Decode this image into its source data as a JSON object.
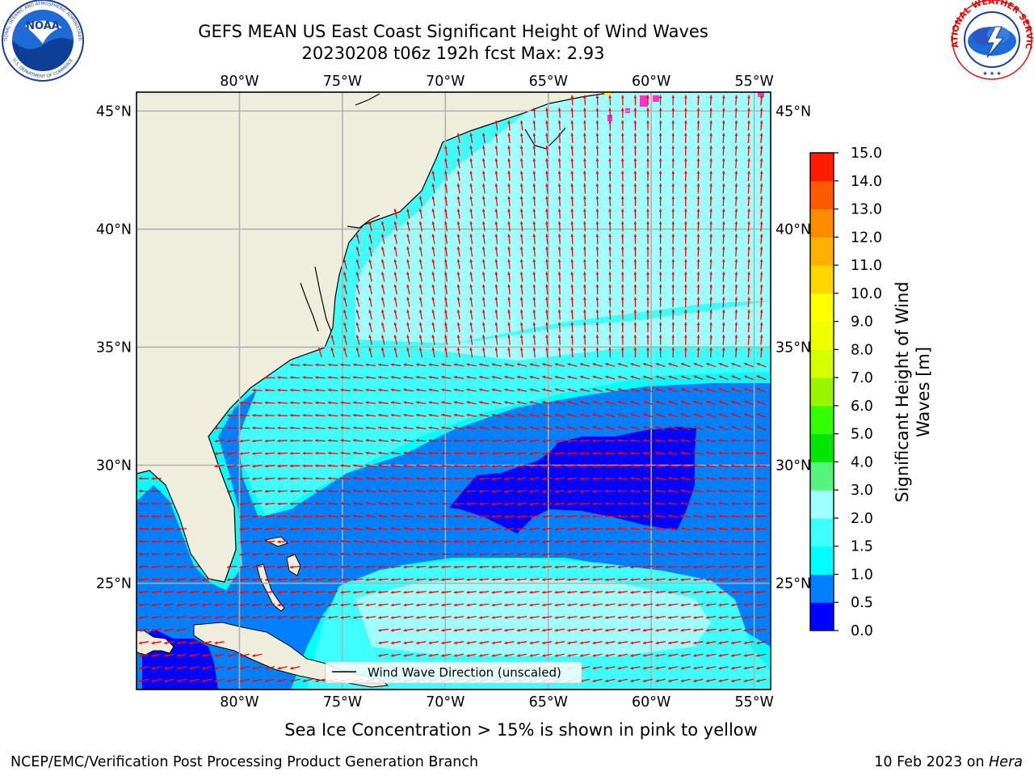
{
  "header": {
    "title_line1": "GEFS MEAN US East Coast Significant Height of Wind Waves",
    "title_line2": "20230208 t06z 192h fcst   Max: 2.93",
    "max_value": 2.93
  },
  "logos": {
    "left": {
      "name": "noaa-logo",
      "text": "NOAA",
      "ring_text": "NATIONAL OCEANIC AND ATMOSPHERIC ADMINISTRATION",
      "bottom_text": "U.S. DEPARTMENT OF COMMERCE"
    },
    "right": {
      "name": "nws-logo",
      "ring_text": "NATIONAL WEATHER SERVICE"
    }
  },
  "map": {
    "lon_range": [
      -85,
      -54.2
    ],
    "lat_range": [
      20.5,
      45.8
    ],
    "lon_ticks": [
      {
        "value": -80,
        "label": "80°W"
      },
      {
        "value": -75,
        "label": "75°W"
      },
      {
        "value": -70,
        "label": "70°W"
      },
      {
        "value": -65,
        "label": "65°W"
      },
      {
        "value": -60,
        "label": "60°W"
      },
      {
        "value": -55,
        "label": "55°W"
      }
    ],
    "lat_ticks": [
      {
        "value": 45,
        "label": "45°N"
      },
      {
        "value": 40,
        "label": "40°N"
      },
      {
        "value": 35,
        "label": "35°N"
      },
      {
        "value": 30,
        "label": "30°N"
      },
      {
        "value": 25,
        "label": "25°N"
      }
    ],
    "gridlines": true,
    "legend": {
      "label": "Wind Wave Direction (unscaled)",
      "placement": "bottom-center"
    },
    "colors": {
      "land": "#efeedc",
      "grid": "#b0b0b0",
      "arrows": "#ff0000",
      "coast": "#000000",
      "sea_ice": "#ff33cc"
    }
  },
  "colorbar": {
    "label": "Significant Height of Wind Waves [m]",
    "label_line1": "Significant Height of Wind",
    "label_line2": "Waves [m]",
    "ticks": [
      "0.0",
      "0.5",
      "1.0",
      "1.5",
      "2.0",
      "3.0",
      "4.0",
      "5.0",
      "6.0",
      "7.0",
      "8.0",
      "9.0",
      "10.0",
      "11.0",
      "12.0",
      "13.0",
      "14.0",
      "15.0"
    ],
    "colors": [
      "#0000ff",
      "#0080ff",
      "#00ffff",
      "#40ffff",
      "#a0ffff",
      "#55f57d",
      "#00e600",
      "#33ff00",
      "#99f500",
      "#d4ff00",
      "#f0ff00",
      "#ffff00",
      "#ffd700",
      "#ffb000",
      "#ff8c00",
      "#ff5a00",
      "#ff1a00"
    ]
  },
  "caption": "Sea Ice Concentration > 15% is shown in pink to yellow",
  "footer": {
    "left": "NCEP/EMC/Verification Post Processing Product Generation Branch",
    "right_date": "10 Feb 2023 on ",
    "right_host": "Hera"
  }
}
